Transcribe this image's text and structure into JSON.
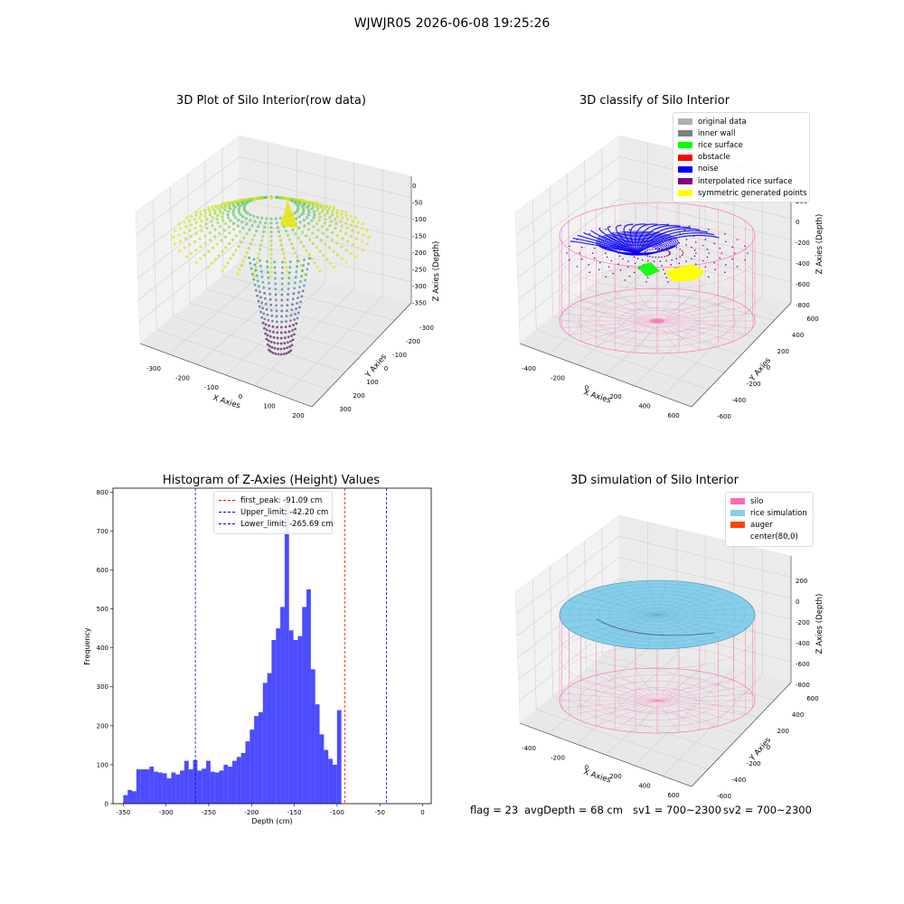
{
  "figure": {
    "suptitle": "WJWJR05 2026-06-08 19:25:26",
    "footer": {
      "flag": "flag = 23",
      "avg_depth": "avgDepth = 68 cm",
      "sv1": "sv1 = 700~2300",
      "sv2": "sv2 = 700~2300"
    }
  },
  "chart_data": [
    {
      "type": "scatter",
      "projection": "3d",
      "title": "3D Plot of Silo Interior(row data)",
      "xlabel": "X Axies",
      "ylabel": "Y Axies",
      "zlabel": "Z Axies (Depth)",
      "x_ticks": [
        "-300",
        "-200",
        "-100",
        "0",
        "100",
        "200"
      ],
      "y_ticks": [
        "-300",
        "-200",
        "-100",
        "0",
        "100",
        "200",
        "300"
      ],
      "z_ticks": [
        "0",
        "-50",
        "-100",
        "-150",
        "-200",
        "-250",
        "-300",
        "-350"
      ],
      "colormap": "viridis",
      "grid": true
    },
    {
      "type": "scatter",
      "projection": "3d",
      "title": "3D classify of Silo Interior",
      "xlabel": "X Axies",
      "ylabel": "Y Axies",
      "zlabel": "Z Axies (Depth)",
      "x_ticks": [
        "-400",
        "-200",
        "0",
        "200",
        "400",
        "600"
      ],
      "y_ticks": [
        "-600",
        "-400",
        "-200",
        "0",
        "200",
        "400",
        "600"
      ],
      "z_ticks": [
        "200",
        "0",
        "-200",
        "-400",
        "-600",
        "-800"
      ],
      "legend": [
        {
          "label": "original data",
          "color": "#b0b0b0"
        },
        {
          "label": "inner wall",
          "color": "#808080"
        },
        {
          "label": "rice surface",
          "color": "#00ff00"
        },
        {
          "label": "obstacle",
          "color": "#ff0000"
        },
        {
          "label": "noise",
          "color": "#0000ff"
        },
        {
          "label": "interpolated rice surface",
          "color": "#800080"
        },
        {
          "label": "symmetric generated points",
          "color": "#ffff00"
        }
      ],
      "legend_position": "top-right",
      "grid": true
    },
    {
      "type": "bar",
      "title": "Histogram of Z-Axies (Height) Values",
      "xlabel": "Depth (cm)",
      "ylabel": "Frequency",
      "xlim": [
        -362,
        10
      ],
      "ylim": [
        0,
        810
      ],
      "x_ticks": [
        -350,
        -300,
        -250,
        -200,
        -150,
        -100,
        -50,
        0
      ],
      "y_ticks": [
        0,
        100,
        200,
        300,
        400,
        500,
        600,
        700,
        800
      ],
      "bin_start": -350,
      "bin_width": 5.1,
      "bar_color": "#0000ff",
      "values": [
        22,
        35,
        32,
        88,
        88,
        88,
        95,
        82,
        80,
        78,
        65,
        80,
        75,
        85,
        110,
        88,
        112,
        85,
        90,
        110,
        82,
        80,
        85,
        100,
        95,
        110,
        120,
        130,
        160,
        190,
        225,
        235,
        310,
        335,
        420,
        450,
        505,
        770,
        445,
        420,
        430,
        505,
        550,
        345,
        255,
        178,
        138,
        115,
        100,
        240
      ],
      "reference_lines": [
        {
          "label": "first_peak: -91.09 cm",
          "value": -91.09,
          "color": "#ff0000"
        },
        {
          "label": "Upper_limit: -42.20 cm",
          "value": -42.2,
          "color": "#0000ff"
        },
        {
          "label": "Lower_limit: -265.69 cm",
          "value": -265.69,
          "color": "#0000ff"
        }
      ],
      "legend_position": "top-center"
    },
    {
      "type": "scatter",
      "projection": "3d",
      "title": "3D simulation of Silo Interior",
      "xlabel": "X Axies",
      "ylabel": "Y Axies",
      "zlabel": "Z Axies (Depth)",
      "x_ticks": [
        "-400",
        "-200",
        "0",
        "200",
        "400",
        "600"
      ],
      "y_ticks": [
        "-600",
        "-400",
        "-200",
        "0",
        "200",
        "400",
        "600"
      ],
      "z_ticks": [
        "200",
        "0",
        "-200",
        "-400",
        "-600",
        "-800"
      ],
      "legend": [
        {
          "label": "silo",
          "color": "#ff69b4"
        },
        {
          "label": "rice simulation",
          "color": "#87ceeb"
        },
        {
          "label": "auger",
          "color": "#ff4500"
        },
        {
          "label": "center(80,0)",
          "color": "#ffffff"
        }
      ],
      "legend_position": "top-right",
      "grid": true
    }
  ]
}
